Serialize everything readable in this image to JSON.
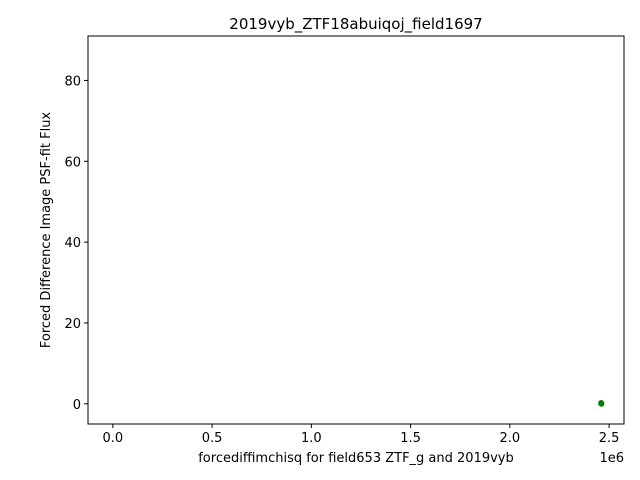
{
  "chart_data": {
    "type": "scatter",
    "title": "2019vyb_ZTF18abuiqoj_field1697",
    "xlabel": "forcediffimchisq for field653 ZTF_g and 2019vyb",
    "ylabel": "Forced Difference Image PSF-fit Flux",
    "x_offset_label": "1e6",
    "xlim": [
      -125000,
      2575000
    ],
    "ylim": [
      -5,
      91
    ],
    "xticks": [
      0,
      500000,
      1000000,
      1500000,
      2000000,
      2500000
    ],
    "xtick_labels": [
      "0.0",
      "0.5",
      "1.0",
      "1.5",
      "2.0",
      "2.5"
    ],
    "yticks": [
      0,
      20,
      40,
      60,
      80
    ],
    "ytick_labels": [
      "0",
      "20",
      "40",
      "60",
      "80"
    ],
    "grid": false,
    "series": [
      {
        "color": "#008000",
        "points": [
          {
            "x": 2460000,
            "y": 0.2
          },
          {
            "x": 2461000,
            "y": 0.0
          }
        ]
      }
    ]
  }
}
